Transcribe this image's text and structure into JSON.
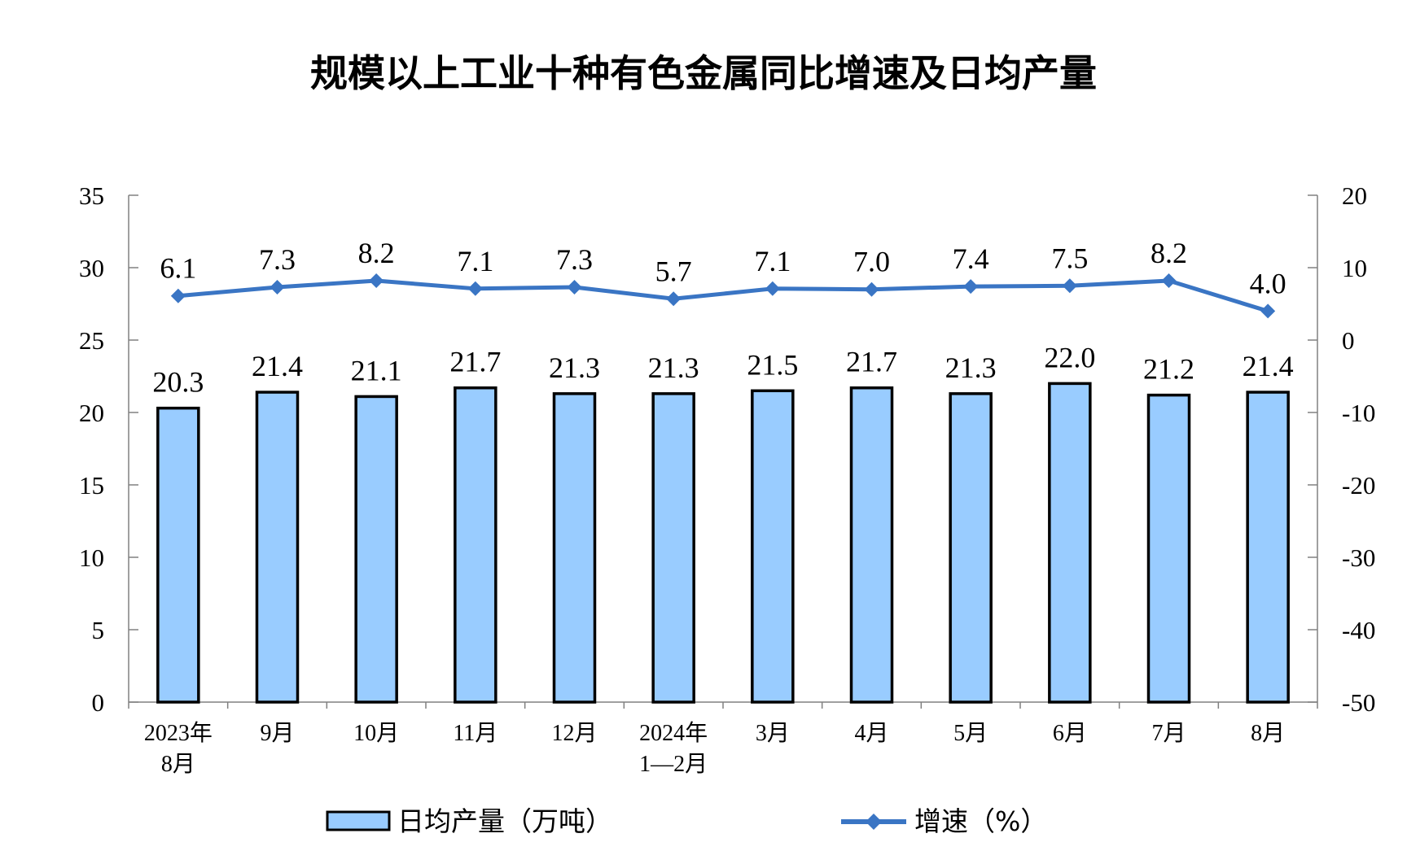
{
  "chart_data": {
    "type": "bar",
    "title": "规模以上工业十种有色金属同比增速及日均产量",
    "categories": [
      [
        "2023年",
        "8月"
      ],
      [
        "9月"
      ],
      [
        "10月"
      ],
      [
        "11月"
      ],
      [
        "12月"
      ],
      [
        "2024年",
        "1—2月"
      ],
      [
        "3月"
      ],
      [
        "4月"
      ],
      [
        "5月"
      ],
      [
        "6月"
      ],
      [
        "7月"
      ],
      [
        "8月"
      ]
    ],
    "series": [
      {
        "name": "日均产量（万吨）",
        "type": "bar",
        "axis": "left",
        "color": "#99ccff",
        "values": [
          20.3,
          21.4,
          21.1,
          21.7,
          21.3,
          21.3,
          21.5,
          21.7,
          21.3,
          22.0,
          21.2,
          21.4
        ],
        "labels": [
          "20.3",
          "21.4",
          "21.1",
          "21.7",
          "21.3",
          "21.3",
          "21.5",
          "21.7",
          "21.3",
          "22.0",
          "21.2",
          "21.4"
        ]
      },
      {
        "name": "增速（%）",
        "type": "line",
        "axis": "right",
        "color": "#3a75c4",
        "values": [
          6.1,
          7.3,
          8.2,
          7.1,
          7.3,
          5.7,
          7.1,
          7.0,
          7.4,
          7.5,
          8.2,
          4.0
        ],
        "labels": [
          "6.1",
          "7.3",
          "8.2",
          "7.1",
          "7.3",
          "5.7",
          "7.1",
          "7.0",
          "7.4",
          "7.5",
          "8.2",
          "4.0"
        ]
      }
    ],
    "y_left": {
      "min": 0,
      "max": 35,
      "ticks": [
        "0",
        "5",
        "10",
        "15",
        "20",
        "25",
        "30",
        "35"
      ]
    },
    "y_right": {
      "min": -50,
      "max": 20,
      "ticks": [
        "-50",
        "-40",
        "-30",
        "-20",
        "-10",
        "0",
        "10",
        "20"
      ]
    },
    "legend_position": "bottom",
    "grid": false
  }
}
